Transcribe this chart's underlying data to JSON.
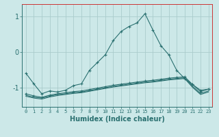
{
  "xlabel": "Humidex (Indice chaleur)",
  "bg_color": "#cce8e8",
  "grid_color": "#aacccc",
  "line_color": "#2a7070",
  "red_color": "#cc3333",
  "xlim": [
    -0.5,
    23.5
  ],
  "ylim": [
    -1.55,
    1.35
  ],
  "x": [
    0,
    1,
    2,
    3,
    4,
    5,
    6,
    7,
    8,
    9,
    10,
    11,
    12,
    13,
    14,
    15,
    16,
    17,
    18,
    19,
    20,
    21,
    22,
    23
  ],
  "line1": [
    -0.6,
    -0.9,
    -1.18,
    -1.1,
    -1.13,
    -1.08,
    -0.95,
    -0.9,
    -0.52,
    -0.3,
    -0.08,
    0.32,
    0.58,
    0.72,
    0.82,
    1.08,
    0.62,
    0.18,
    -0.08,
    -0.52,
    -0.75,
    -0.92,
    -1.08,
    -1.05
  ],
  "line2": [
    -1.18,
    -1.24,
    -1.28,
    -1.22,
    -1.18,
    -1.15,
    -1.12,
    -1.1,
    -1.06,
    -1.02,
    -0.98,
    -0.94,
    -0.91,
    -0.88,
    -0.85,
    -0.82,
    -0.8,
    -0.77,
    -0.74,
    -0.72,
    -0.7,
    -0.92,
    -1.12,
    -1.05
  ],
  "line3": [
    -1.22,
    -1.28,
    -1.3,
    -1.25,
    -1.2,
    -1.18,
    -1.15,
    -1.13,
    -1.09,
    -1.05,
    -1.01,
    -0.97,
    -0.94,
    -0.91,
    -0.88,
    -0.85,
    -0.83,
    -0.8,
    -0.77,
    -0.75,
    -0.73,
    -0.97,
    -1.17,
    -1.1
  ],
  "line4": [
    -1.25,
    -1.3,
    -1.33,
    -1.27,
    -1.23,
    -1.2,
    -1.17,
    -1.15,
    -1.11,
    -1.07,
    -1.03,
    -0.99,
    -0.96,
    -0.93,
    -0.9,
    -0.87,
    -0.85,
    -0.82,
    -0.79,
    -0.77,
    -0.75,
    -1.0,
    -1.2,
    -1.13
  ],
  "yticks": [
    -1,
    0,
    1
  ],
  "xticks": [
    0,
    1,
    2,
    3,
    4,
    5,
    6,
    7,
    8,
    9,
    10,
    11,
    12,
    13,
    14,
    15,
    16,
    17,
    18,
    19,
    20,
    21,
    22,
    23
  ]
}
